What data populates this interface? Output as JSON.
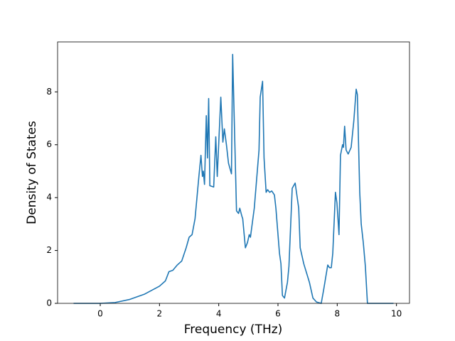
{
  "chart_data": {
    "type": "line",
    "xlabel": "Frequency (THz)",
    "ylabel": "Density of States",
    "x": [
      -0.9,
      0,
      0.5,
      1,
      1.5,
      2,
      2.2,
      2.32,
      2.45,
      2.6,
      2.75,
      2.9,
      3.0,
      3.1,
      3.2,
      3.33,
      3.4,
      3.45,
      3.48,
      3.52,
      3.58,
      3.62,
      3.66,
      3.7,
      3.83,
      3.9,
      3.95,
      4.07,
      4.14,
      4.19,
      4.26,
      4.33,
      4.43,
      4.47,
      4.6,
      4.67,
      4.71,
      4.78,
      4.81,
      4.9,
      4.97,
      5.03,
      5.07,
      5.2,
      5.36,
      5.4,
      5.48,
      5.53,
      5.6,
      5.65,
      5.72,
      5.79,
      5.88,
      5.93,
      6.05,
      6.1,
      6.15,
      6.22,
      6.32,
      6.37,
      6.43,
      6.48,
      6.58,
      6.7,
      6.75,
      6.87,
      7.06,
      7.18,
      7.3,
      7.46,
      7.54,
      7.68,
      7.74,
      7.8,
      7.85,
      7.94,
      7.99,
      8.06,
      8.11,
      8.18,
      8.21,
      8.25,
      8.3,
      8.37,
      8.47,
      8.56,
      8.64,
      8.68,
      8.76,
      8.81,
      8.88,
      8.95,
      9.02,
      9.9
    ],
    "values": [
      0,
      0,
      0.03,
      0.15,
      0.35,
      0.65,
      0.85,
      1.2,
      1.25,
      1.45,
      1.6,
      2.1,
      2.5,
      2.6,
      3.2,
      4.8,
      5.6,
      4.8,
      5.0,
      4.5,
      7.1,
      5.5,
      7.75,
      4.45,
      4.4,
      6.3,
      4.8,
      7.8,
      6.1,
      6.6,
      6.0,
      5.3,
      4.9,
      9.42,
      3.5,
      3.4,
      3.6,
      3.3,
      3.2,
      2.1,
      2.3,
      2.6,
      2.5,
      3.6,
      5.8,
      7.8,
      8.4,
      5.5,
      4.2,
      4.3,
      4.2,
      4.25,
      4.1,
      3.6,
      1.9,
      1.5,
      0.3,
      0.2,
      0.8,
      1.4,
      3.0,
      4.35,
      4.55,
      3.6,
      2.1,
      1.5,
      0.8,
      0.2,
      0.05,
      0,
      0.5,
      1.45,
      1.35,
      1.35,
      1.9,
      4.2,
      3.8,
      2.6,
      5.6,
      6.0,
      5.9,
      6.7,
      5.8,
      5.65,
      5.9,
      6.9,
      8.1,
      7.9,
      4.2,
      3.0,
      2.3,
      1.4,
      0,
      0
    ],
    "color": "#1f77b4",
    "xlim": [
      -1.44,
      10.44
    ],
    "xticks": [
      0,
      2,
      4,
      6,
      8,
      10
    ],
    "ylim": [
      0,
      9.89
    ],
    "yticks": [
      0,
      2,
      4,
      6,
      8
    ]
  }
}
